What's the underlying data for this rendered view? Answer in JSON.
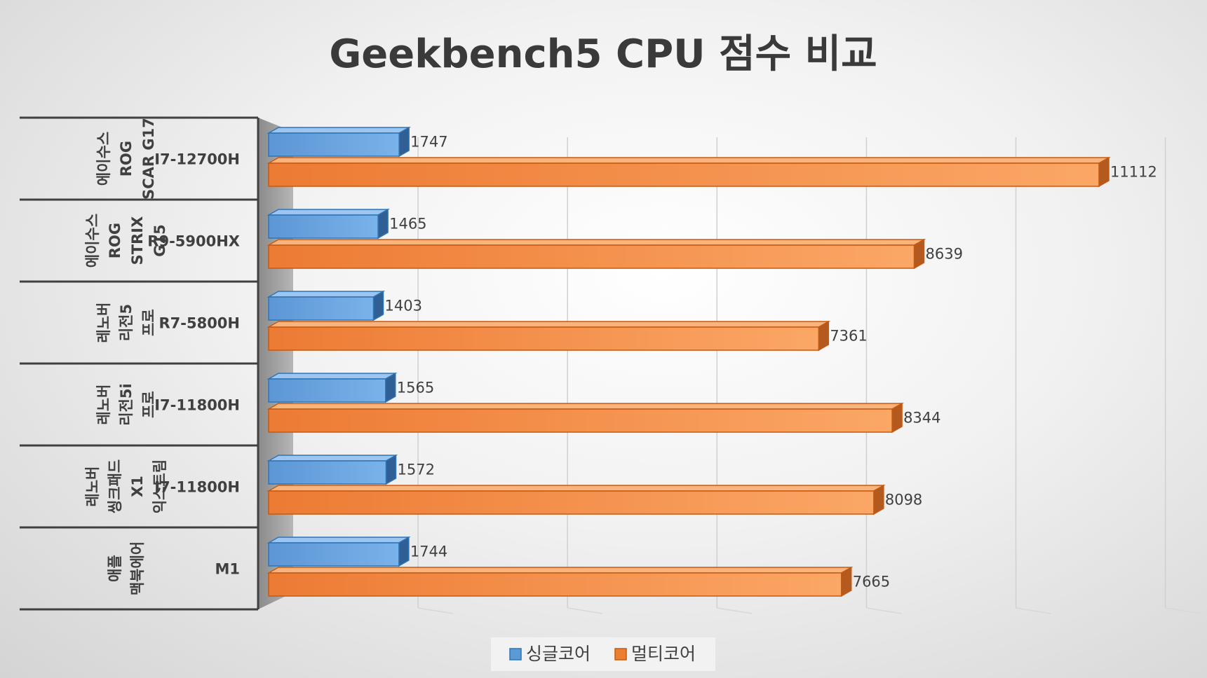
{
  "chart_data": {
    "type": "bar",
    "orientation": "horizontal",
    "title": "Geekbench5 CPU 점수 비교",
    "xlim": [
      0,
      12000
    ],
    "grid": true,
    "legend_position": "bottom",
    "categories": [
      {
        "model_lines": [
          "에이수스",
          "ROG",
          "SCAR G17"
        ],
        "cpu": "I7-12700H"
      },
      {
        "model_lines": [
          "에이수스",
          "ROG",
          "STRIX",
          "G15"
        ],
        "cpu": "R9-5900HX"
      },
      {
        "model_lines": [
          "레노버",
          "리전5",
          "프로"
        ],
        "cpu": "R7-5800H"
      },
      {
        "model_lines": [
          "레노버",
          "리전5i",
          "프로"
        ],
        "cpu": "I7-11800H"
      },
      {
        "model_lines": [
          "레노버",
          "씽크패드",
          "X1",
          "익스트림"
        ],
        "cpu": "I7-11800H"
      },
      {
        "model_lines": [
          "애플",
          "맥북에어"
        ],
        "cpu": "M1"
      }
    ],
    "series": [
      {
        "name": "싱글코어",
        "color": "#5b9bd5",
        "values": [
          1747,
          1465,
          1403,
          1565,
          1572,
          1744
        ]
      },
      {
        "name": "멀티코어",
        "color": "#ed7d31",
        "values": [
          11112,
          8639,
          7361,
          8344,
          8098,
          7665
        ]
      }
    ]
  }
}
